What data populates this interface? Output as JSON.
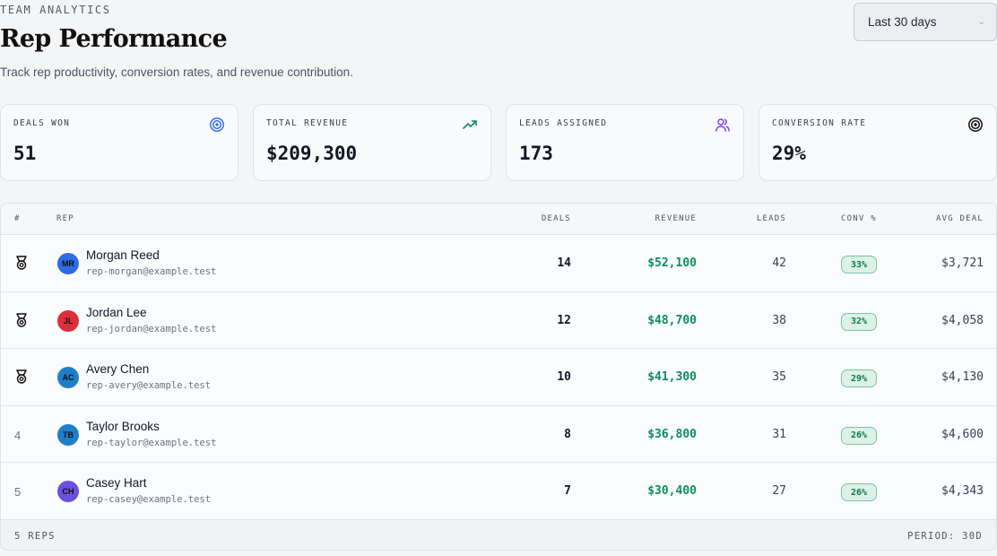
{
  "header": {
    "eyebrow": "TEAM ANALYTICS",
    "title": "Rep Performance",
    "subtitle": "Track rep productivity, conversion rates, and revenue contribution.",
    "range_select": {
      "value": "Last 30 days",
      "icon": "chevron-down-icon"
    }
  },
  "stats": [
    {
      "label": "DEALS WON",
      "value": "51",
      "icon": "target-icon",
      "color": "#2563eb"
    },
    {
      "label": "TOTAL REVENUE",
      "value": "$209,300",
      "icon": "trending-up-icon",
      "color": "#0a8f5a"
    },
    {
      "label": "LEADS ASSIGNED",
      "value": "173",
      "icon": "users-icon",
      "color": "#7c3aed"
    },
    {
      "label": "CONVERSION RATE",
      "value": "29%",
      "icon": "target-icon",
      "color": "#111111"
    }
  ],
  "table": {
    "columns": {
      "rank": "#",
      "rep": "REP",
      "deals": "DEALS",
      "revenue": "REVENUE",
      "leads": "LEADS",
      "conv": "CONV %",
      "avg": "AVG DEAL"
    },
    "rows": [
      {
        "rank": "",
        "rank_icon": "medal-icon",
        "initials": "MR",
        "avatar_color": "#2f6be6",
        "name": "Morgan Reed",
        "email": "rep-morgan@example.test",
        "deals": "14",
        "revenue": "$52,100",
        "leads": "42",
        "conv": "33%",
        "avg": "$3,721"
      },
      {
        "rank": "",
        "rank_icon": "medal-icon",
        "initials": "JL",
        "avatar_color": "#dc2e3c",
        "name": "Jordan Lee",
        "email": "rep-jordan@example.test",
        "deals": "12",
        "revenue": "$48,700",
        "leads": "38",
        "conv": "32%",
        "avg": "$4,058"
      },
      {
        "rank": "",
        "rank_icon": "medal-icon",
        "initials": "AC",
        "avatar_color": "#1e7fc8",
        "name": "Avery Chen",
        "email": "rep-avery@example.test",
        "deals": "10",
        "revenue": "$41,300",
        "leads": "35",
        "conv": "29%",
        "avg": "$4,130"
      },
      {
        "rank": "4",
        "rank_icon": "",
        "initials": "TB",
        "avatar_color": "#1e7fc8",
        "name": "Taylor Brooks",
        "email": "rep-taylor@example.test",
        "deals": "8",
        "revenue": "$36,800",
        "leads": "31",
        "conv": "26%",
        "avg": "$4,600"
      },
      {
        "rank": "5",
        "rank_icon": "",
        "initials": "CH",
        "avatar_color": "#6a4fe0",
        "name": "Casey Hart",
        "email": "rep-casey@example.test",
        "deals": "7",
        "revenue": "$30,400",
        "leads": "27",
        "conv": "26%",
        "avg": "$4,343"
      }
    ],
    "footer": {
      "count": "5 REPS",
      "period": "PERIOD: 30D"
    }
  }
}
